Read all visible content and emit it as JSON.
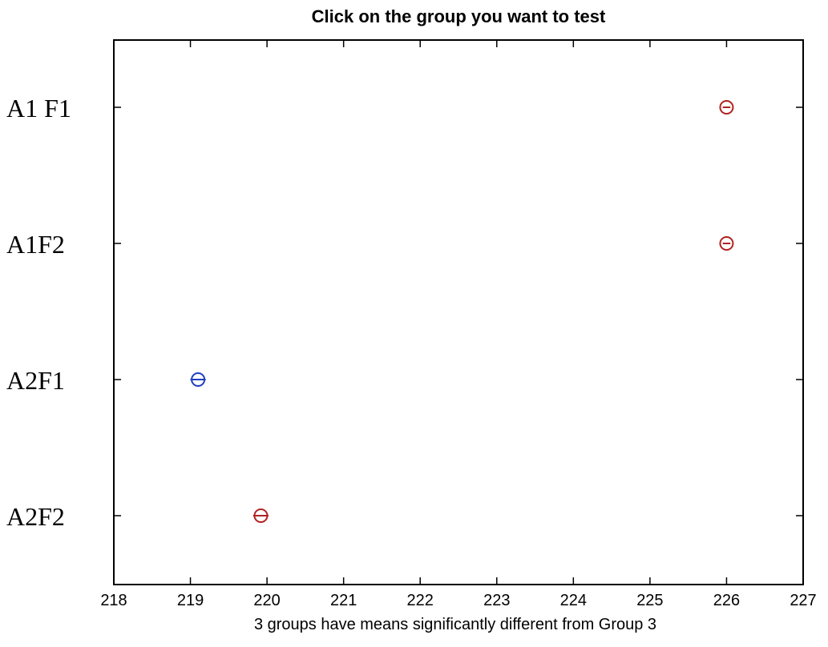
{
  "chart_data": {
    "type": "scatter",
    "title": "Click on the group you want to test",
    "xlabel": "3 groups have means significantly different from Group 3",
    "ylabel": "",
    "xlim": [
      218,
      227
    ],
    "x_ticks": [
      "218",
      "219",
      "220",
      "221",
      "222",
      "223",
      "224",
      "225",
      "226",
      "227"
    ],
    "groups": [
      {
        "label": "A1 F1",
        "mean": 226.0,
        "ci": [
          225.95,
          226.05
        ],
        "color": "#b22222"
      },
      {
        "label": "A1F2",
        "mean": 226.0,
        "ci": [
          225.95,
          226.05
        ],
        "color": "#b22222"
      },
      {
        "label": "A2F1",
        "mean": 219.1,
        "ci": [
          219.0,
          219.2
        ],
        "color": "#1f3fbf",
        "selected": true
      },
      {
        "label": "A2F2",
        "mean": 219.92,
        "ci": [
          219.82,
          220.02
        ],
        "color": "#b22222"
      }
    ],
    "reference_interval": [
      219.0,
      219.24
    ],
    "grid": false,
    "legend": "none"
  }
}
